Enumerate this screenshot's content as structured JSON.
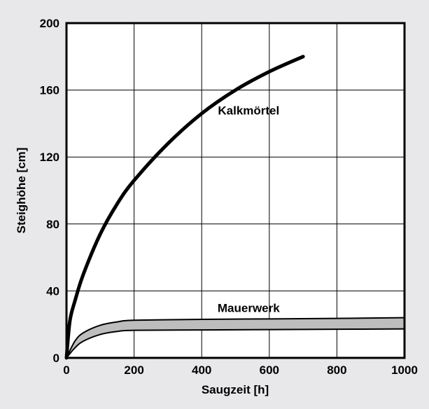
{
  "chart_data": {
    "type": "line",
    "title": "",
    "xlabel": "Saugzeit  [h]",
    "ylabel": "Steighöhe  [cm]",
    "xlim": [
      0,
      1000
    ],
    "ylim": [
      0,
      200
    ],
    "x_ticks": [
      0,
      200,
      400,
      600,
      800,
      1000
    ],
    "y_ticks": [
      0,
      40,
      80,
      120,
      160,
      200
    ],
    "grid": true,
    "legend": "none",
    "colors": {
      "background": "#e8e8ea",
      "plot_background": "#ffffff",
      "line": "#000000",
      "band_fill": "#bdbdbd"
    },
    "series": [
      {
        "name": "Kalkmörtel",
        "x": [
          0,
          10,
          25,
          50,
          100,
          150,
          200,
          300,
          400,
          500,
          600,
          700
        ],
        "y": [
          0,
          22,
          34,
          50,
          74,
          92,
          106,
          128,
          146,
          160,
          171,
          180
        ]
      },
      {
        "name": "Mauerwerk",
        "type": "band",
        "x": [
          0,
          25,
          50,
          100,
          150,
          200,
          400,
          600,
          800,
          1000
        ],
        "upper": [
          0,
          10,
          15,
          19.5,
          21.5,
          22.5,
          23,
          23.3,
          23.6,
          24
        ],
        "lower": [
          0,
          6,
          10,
          14,
          15.8,
          16.5,
          16.7,
          16.9,
          17.1,
          17.3
        ]
      }
    ],
    "annotations": [
      {
        "text": "Kalkmörtel",
        "x": 570,
        "y": 148
      },
      {
        "text": "Mauerwerk",
        "x": 570,
        "y": 30
      }
    ]
  }
}
